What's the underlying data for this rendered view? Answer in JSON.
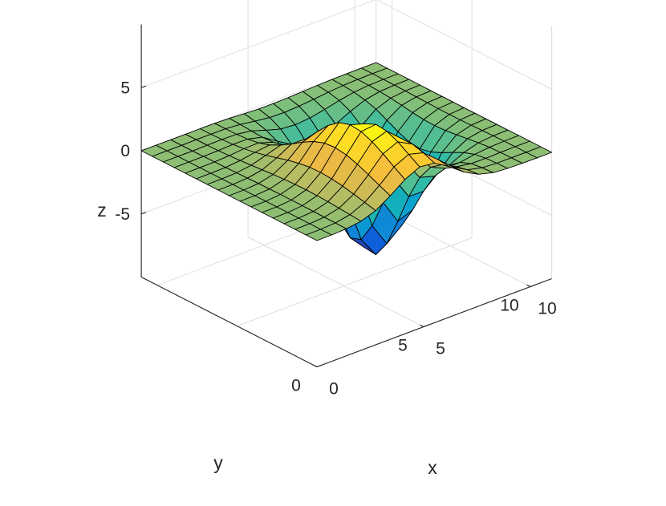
{
  "chart_data": {
    "type": "surface",
    "title": "",
    "xlabel": "x",
    "ylabel": "y",
    "zlabel": "z",
    "xlim": [
      0,
      11
    ],
    "ylim": [
      0,
      11
    ],
    "zlim": [
      -10,
      10
    ],
    "x_ticks": [
      0,
      5,
      10
    ],
    "y_ticks": [
      0,
      5,
      10
    ],
    "z_ticks": [
      -5,
      0,
      5
    ],
    "x_tick_labels": [
      "0",
      "5",
      "10"
    ],
    "y_tick_labels": [
      "0",
      "5",
      "10"
    ],
    "z_tick_labels": [
      "-5",
      "0",
      "5"
    ],
    "grid": true,
    "view": "3d",
    "colormap": "parula",
    "grid_size": [
      17,
      17
    ],
    "x": [
      0,
      0.6875,
      1.375,
      2.0625,
      2.75,
      3.4375,
      4.125,
      4.8125,
      5.5,
      6.1875,
      6.875,
      7.5625,
      8.25,
      8.9375,
      9.625,
      10.3125,
      11
    ],
    "y": [
      0,
      0.6875,
      1.375,
      2.0625,
      2.75,
      3.4375,
      4.125,
      4.8125,
      5.5,
      6.1875,
      6.875,
      7.5625,
      8.25,
      8.9375,
      9.625,
      10.3125,
      11
    ],
    "z": [
      [
        0,
        0.01,
        0.06,
        0.22,
        0.63,
        1.36,
        2.22,
        2.77,
        2.65,
        1.93,
        1.07,
        0.45,
        0.14,
        0.04,
        0.01,
        0,
        0
      ],
      [
        0,
        0.01,
        0.08,
        0.3,
        0.83,
        1.74,
        2.77,
        3.33,
        3.01,
        2.04,
        1.02,
        0.36,
        0.08,
        0.01,
        0,
        0,
        0
      ],
      [
        0,
        0.01,
        0.09,
        0.37,
        1.04,
        2.15,
        3.36,
        3.88,
        3.26,
        1.94,
        0.76,
        0.15,
        -0.04,
        -0.05,
        -0.02,
        0,
        0
      ],
      [
        0,
        0.01,
        0.1,
        0.43,
        1.23,
        2.52,
        3.87,
        4.28,
        3.25,
        1.49,
        0.12,
        -0.41,
        -0.38,
        -0.18,
        -0.06,
        -0.01,
        0
      ],
      [
        0,
        0.01,
        0.11,
        0.47,
        1.36,
        2.81,
        4.23,
        4.37,
        2.74,
        0.47,
        -1.14,
        -1.48,
        -1.06,
        -0.49,
        -0.15,
        -0.03,
        -0.01
      ],
      [
        0,
        0.01,
        0.11,
        0.49,
        1.42,
        2.95,
        4.33,
        3.97,
        1.59,
        -1.27,
        -3.1,
        -3.12,
        -2.09,
        -0.92,
        -0.27,
        -0.05,
        -0.01
      ],
      [
        0,
        0.01,
        0.11,
        0.47,
        1.39,
        2.87,
        4.06,
        3.05,
        -0.15,
        -3.58,
        -5.5,
        -5.05,
        -3.25,
        -1.39,
        -0.4,
        -0.08,
        -0.01
      ],
      [
        0,
        0.01,
        0.1,
        0.43,
        1.26,
        2.55,
        3.39,
        1.69,
        -2.1,
        -5.86,
        -7.72,
        -6.74,
        -4.23,
        -1.77,
        -0.51,
        -0.1,
        -0.01
      ],
      [
        0,
        0.01,
        0.09,
        0.37,
        1.06,
        2.05,
        2.44,
        0.18,
        -3.76,
        -7.4,
        -9.03,
        -7.66,
        -4.71,
        -1.96,
        -0.56,
        -0.11,
        -0.02
      ],
      [
        0,
        0.01,
        0.07,
        0.29,
        0.81,
        1.47,
        1.44,
        -1.07,
        -4.66,
        -7.71,
        -8.93,
        -7.39,
        -4.48,
        -1.85,
        -0.53,
        -0.1,
        -0.01
      ],
      [
        0,
        0,
        0.05,
        0.21,
        0.56,
        0.93,
        0.6,
        -1.76,
        -4.59,
        -6.79,
        -7.5,
        -6.06,
        -3.63,
        -1.49,
        -0.43,
        -0.08,
        -0.01
      ],
      [
        0,
        0,
        0.03,
        0.14,
        0.35,
        0.5,
        0.07,
        -1.83,
        -3.81,
        -5.15,
        -5.38,
        -4.24,
        -2.51,
        -1.03,
        -0.29,
        -0.06,
        -0.01
      ],
      [
        0,
        0,
        0.02,
        0.08,
        0.19,
        0.22,
        -0.17,
        -1.46,
        -2.71,
        -3.37,
        -3.33,
        -2.56,
        -1.5,
        -0.61,
        -0.17,
        -0.03,
        0
      ],
      [
        0,
        0,
        0.01,
        0.04,
        0.09,
        0.07,
        -0.21,
        -0.96,
        -1.66,
        -1.93,
        -1.81,
        -1.36,
        -0.79,
        -0.32,
        -0.09,
        -0.02,
        0
      ],
      [
        0,
        0,
        0,
        0.02,
        0.04,
        0.01,
        -0.16,
        -0.54,
        -0.88,
        -0.98,
        -0.88,
        -0.64,
        -0.37,
        -0.15,
        -0.04,
        -0.01,
        0
      ],
      [
        0,
        0,
        0,
        0.01,
        0.01,
        0,
        -0.09,
        -0.27,
        -0.42,
        -0.45,
        -0.39,
        -0.28,
        -0.16,
        -0.06,
        -0.02,
        0,
        0
      ],
      [
        0,
        0,
        0,
        0,
        0,
        -0.01,
        -0.05,
        -0.12,
        -0.18,
        -0.19,
        -0.16,
        -0.11,
        -0.06,
        -0.03,
        -0.01,
        0,
        0
      ]
    ]
  }
}
